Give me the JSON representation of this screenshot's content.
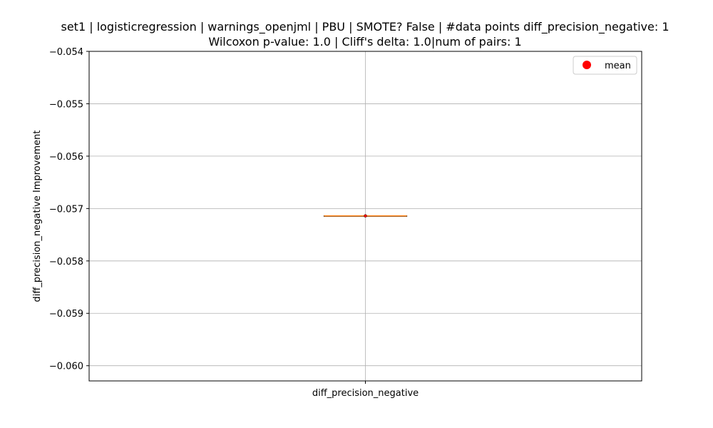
{
  "chart_data": {
    "type": "box",
    "title_lines": [
      "set1 | logisticregression | warnings_openjml | PBU | SMOTE? False | #data points diff_precision_negative: 1",
      "Wilcoxon p-value: 1.0 | Cliff's delta: 1.0|num of pairs: 1"
    ],
    "xlabel": "",
    "ylabel": "diff_precision_negative Improvement",
    "categories": [
      "diff_precision_negative"
    ],
    "ylim": [
      -0.06029,
      -0.054
    ],
    "yticks": [
      -0.054,
      -0.055,
      -0.056,
      -0.057,
      -0.058,
      -0.059,
      -0.06
    ],
    "ytick_labels": [
      "−0.054",
      "−0.055",
      "−0.056",
      "−0.057",
      "−0.058",
      "−0.059",
      "−0.060"
    ],
    "grid": true,
    "legend": {
      "placement": "top-right",
      "entries": [
        {
          "label": "mean",
          "marker": "circle",
          "color": "#ff0000"
        }
      ]
    },
    "boxes": [
      {
        "category": "diff_precision_negative",
        "min": -0.05714,
        "q1": -0.05714,
        "median": -0.05714,
        "q3": -0.05714,
        "max": -0.05714,
        "mean": -0.05714
      }
    ],
    "colors": {
      "box": "#000000",
      "median": "#ff7f0e",
      "mean": "#ff0000",
      "grid": "#b0b0b0"
    }
  }
}
